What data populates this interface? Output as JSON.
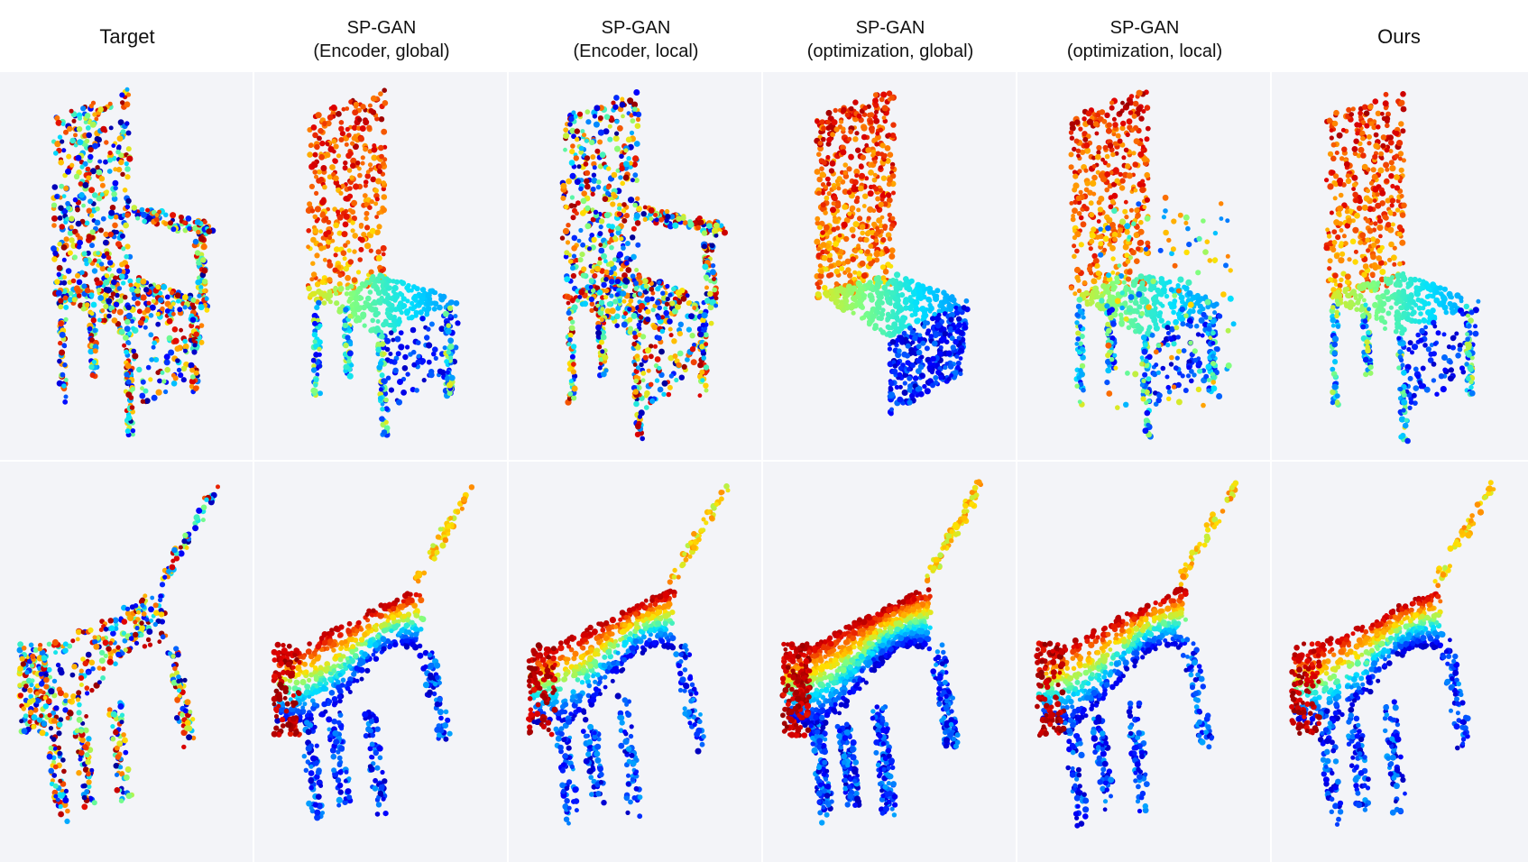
{
  "columns": [
    {
      "title": "Target"
    },
    {
      "title": "SP-GAN\n(Encoder, global)"
    },
    {
      "title": "SP-GAN\n(Encoder, local)"
    },
    {
      "title": "SP-GAN\n(optimization, global)"
    },
    {
      "title": "SP-GAN\n(optimization, local)"
    },
    {
      "title": "Ours"
    }
  ],
  "rows": [
    {
      "name": "chair"
    },
    {
      "name": "dog"
    }
  ],
  "colors": {
    "background": "#ffffff",
    "panel_shade": "#f3f4f8",
    "colormap": [
      "#00008f",
      "#0000ff",
      "#0080ff",
      "#00e0ff",
      "#80ff80",
      "#ffe000",
      "#ff8000",
      "#e00000",
      "#8f0000"
    ]
  }
}
